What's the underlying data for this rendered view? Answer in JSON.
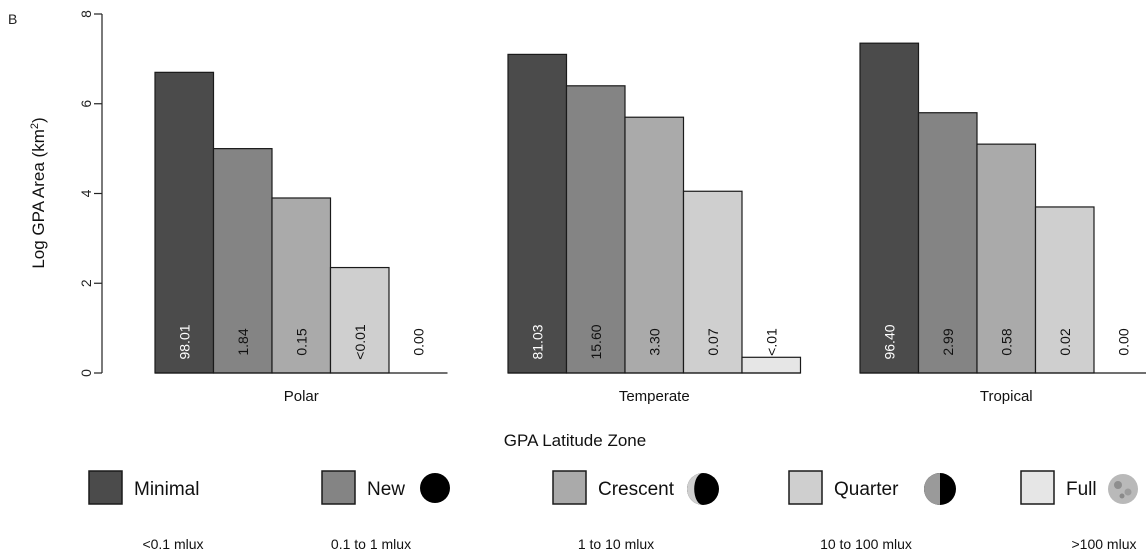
{
  "panel_label": "B",
  "chart_data": {
    "type": "bar",
    "xlabel": "GPA Latitude Zone",
    "ylabel": "Log GPA Area (km",
    "ylabel_sup": "2",
    "ylabel_suffix": ")",
    "ylim": [
      0,
      8
    ],
    "yticks": [
      "0",
      "2",
      "4",
      "6",
      "8"
    ],
    "grid": false,
    "categories": [
      "Polar",
      "Temperate",
      "Tropical"
    ],
    "series": [
      {
        "name": "Minimal",
        "color": "#4b4b4b",
        "label_color": "#ffffff",
        "values": [
          6.7,
          7.1,
          7.35
        ],
        "labels": [
          "98.01",
          "81.03",
          "96.40"
        ]
      },
      {
        "name": "New",
        "color": "#848484",
        "label_color": "#111111",
        "values": [
          5.0,
          6.4,
          5.8
        ],
        "labels": [
          "1.84",
          "15.60",
          "2.99"
        ]
      },
      {
        "name": "Crescent",
        "color": "#aaaaaa",
        "label_color": "#111111",
        "values": [
          3.9,
          5.7,
          5.1
        ],
        "labels": [
          "0.15",
          "3.30",
          "0.58"
        ]
      },
      {
        "name": "Quarter",
        "color": "#cfcfcf",
        "label_color": "#111111",
        "values": [
          2.35,
          4.05,
          3.7
        ],
        "labels": [
          "<0.01",
          "0.07",
          "0.02"
        ]
      },
      {
        "name": "Full",
        "color": "#e6e6e6",
        "label_color": "#111111",
        "values": [
          0,
          0.35,
          0
        ],
        "labels": [
          "0.00",
          "<.01",
          "0.00"
        ]
      }
    ]
  },
  "legend": {
    "placement": "bottom",
    "items": [
      {
        "name": "Minimal",
        "range": "<0.1 mlux",
        "moon": "none-icon"
      },
      {
        "name": "New",
        "range": "0.1 to 1 mlux",
        "moon": "new-moon-icon"
      },
      {
        "name": "Crescent",
        "range": "1 to 10 mlux",
        "moon": "crescent-moon-icon"
      },
      {
        "name": "Quarter",
        "range": "10 to 100 mlux",
        "moon": "quarter-moon-icon"
      },
      {
        "name": "Full",
        "range": ">100 mlux",
        "moon": "full-moon-icon"
      }
    ]
  }
}
